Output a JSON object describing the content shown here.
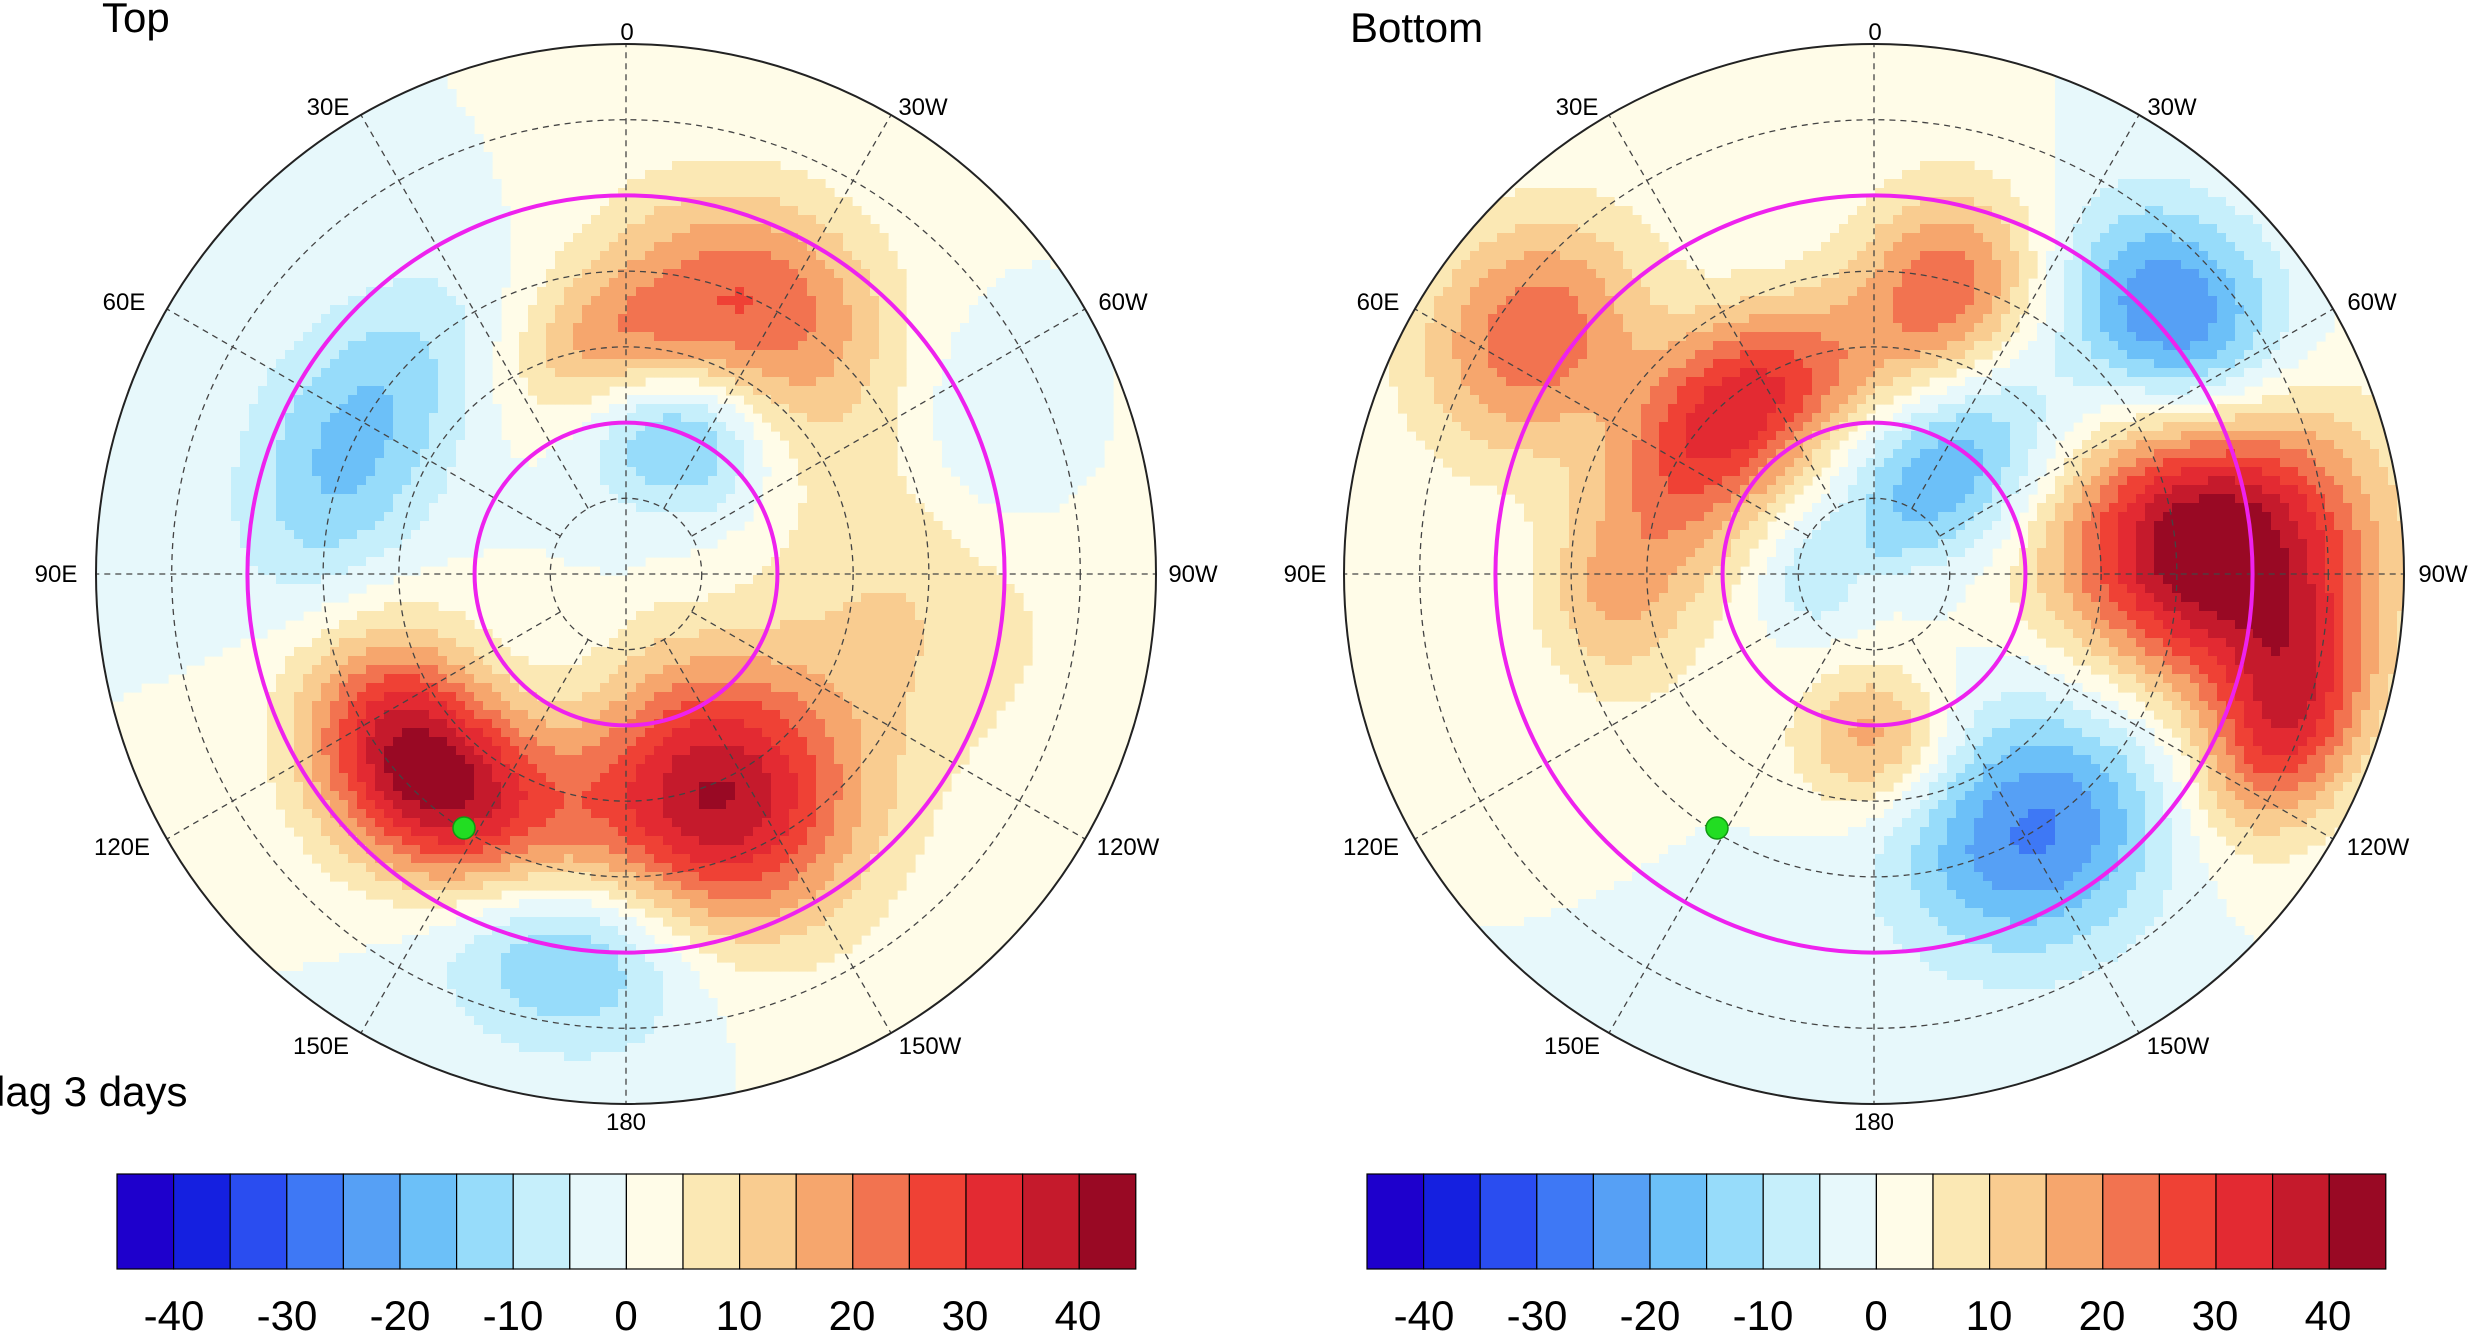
{
  "caption": "lag 3 days",
  "colors": {
    "scale": [
      "#1e00cc",
      "#1520e0",
      "#2a4df0",
      "#3e78f5",
      "#56a0f5",
      "#6cc0f8",
      "#97dcfa",
      "#c6effb",
      "#e7f8fb",
      "#fffce8",
      "#fbe8b4",
      "#f9cc90",
      "#f6a66d",
      "#f27350",
      "#ef4135",
      "#e32a32",
      "#c51a2c",
      "#990924"
    ],
    "circle": "#ee22ee",
    "marker": "#22dd22",
    "coast": "#555555"
  },
  "colorbar_ticks": [
    "-40",
    "-30",
    "-20",
    "-10",
    "0",
    "10",
    "20",
    "30",
    "40"
  ],
  "panels": [
    {
      "title": "Top",
      "lon_labels": {
        "top": "0",
        "top_left": "30E",
        "top_right": "30W",
        "upper_left": "60E",
        "upper_right": "60W",
        "left": "90E",
        "right": "90W",
        "lower_left": "120E",
        "lower_right": "120W",
        "bottom_left": "150E",
        "bottom_right": "150W",
        "bottom": "180"
      },
      "anomalies": [
        {
          "lon": 135,
          "colat": 37,
          "amp": 46,
          "sx": 13,
          "sy": 9
        },
        {
          "lon": -158,
          "colat": 32,
          "amp": 40,
          "sx": 12,
          "sy": 13
        },
        {
          "lon": -25,
          "colat": 40,
          "amp": 24,
          "sx": 13,
          "sy": 10
        },
        {
          "lon": 5,
          "colat": 30,
          "amp": 15,
          "sx": 10,
          "sy": 7
        },
        {
          "lon": -95,
          "colat": 38,
          "amp": 10,
          "sx": 15,
          "sy": 15
        },
        {
          "lon": -20,
          "colat": 20,
          "amp": -20,
          "sx": 8,
          "sy": 7
        },
        {
          "lon": 65,
          "colat": 40,
          "amp": -17,
          "sx": 16,
          "sy": 9
        },
        {
          "lon": 172,
          "colat": 50,
          "amp": -19,
          "sx": 11,
          "sy": 9
        },
        {
          "lon": -70,
          "colat": 50,
          "amp": -8,
          "sx": 10,
          "sy": 8
        }
      ]
    },
    {
      "title": "Bottom",
      "lon_labels": {
        "top": "0",
        "top_left": "30E",
        "top_right": "30W",
        "upper_left": "60E",
        "upper_right": "60W",
        "left": "90E",
        "right": "90W",
        "lower_left": "120E",
        "lower_right": "120W",
        "bottom_left": "150E",
        "bottom_right": "150W",
        "bottom": "180"
      },
      "anomalies": [
        {
          "lon": -85,
          "colat": 45,
          "amp": 48,
          "sx": 12,
          "sy": 14
        },
        {
          "lon": 40,
          "colat": 28,
          "amp": 34,
          "sx": 14,
          "sy": 8
        },
        {
          "lon": -15,
          "colat": 38,
          "amp": 26,
          "sx": 8,
          "sy": 10
        },
        {
          "lon": 55,
          "colat": 55,
          "amp": 24,
          "sx": 10,
          "sy": 10
        },
        {
          "lon": -110,
          "colat": 58,
          "amp": 28,
          "sx": 9,
          "sy": 7
        },
        {
          "lon": 180,
          "colat": 22,
          "amp": 18,
          "sx": 7,
          "sy": 7
        },
        {
          "lon": 95,
          "colat": 35,
          "amp": 14,
          "sx": 9,
          "sy": 7
        },
        {
          "lon": -30,
          "colat": 18,
          "amp": -22,
          "sx": 9,
          "sy": 12
        },
        {
          "lon": -148,
          "colat": 40,
          "amp": -26,
          "sx": 12,
          "sy": 11
        },
        {
          "lon": -50,
          "colat": 52,
          "amp": -28,
          "sx": 10,
          "sy": 9
        },
        {
          "lon": 90,
          "colat": 8,
          "amp": -9,
          "sx": 6,
          "sy": 5
        }
      ]
    }
  ]
}
